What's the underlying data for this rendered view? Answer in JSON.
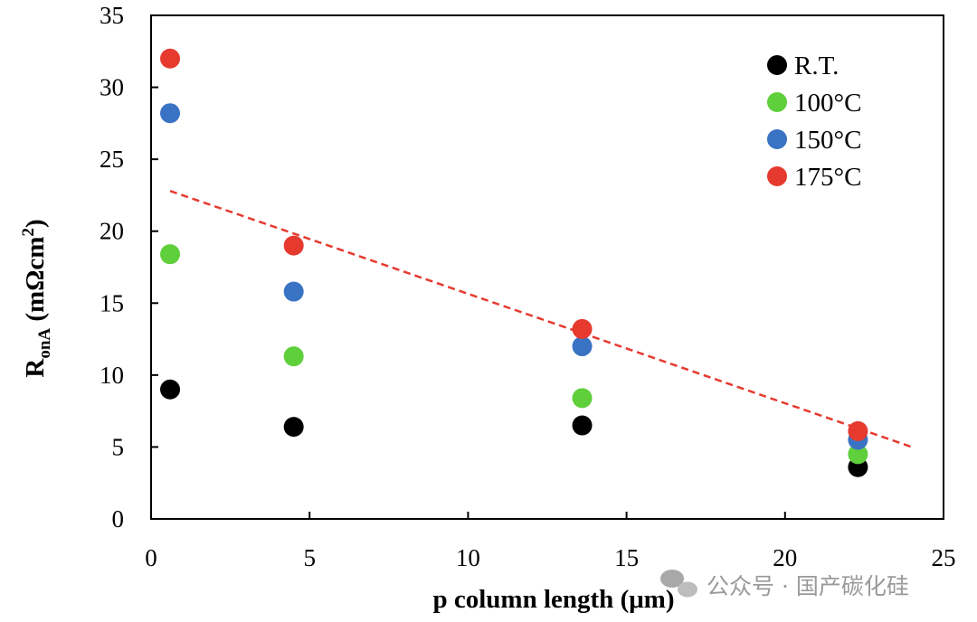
{
  "chart_data": {
    "type": "scatter",
    "title": "",
    "xlabel": "p column length (μm)",
    "ylabel_main": "R",
    "ylabel_sub": "onA",
    "ylabel_unit": " (mΩcm",
    "ylabel_sup": "2",
    "ylabel_close": ")",
    "xlim": [
      0,
      25
    ],
    "ylim": [
      0,
      35
    ],
    "x_ticks": [
      "0",
      "5",
      "10",
      "15",
      "20",
      "25"
    ],
    "y_ticks": [
      "0",
      "5",
      "10",
      "15",
      "20",
      "25",
      "30",
      "35"
    ],
    "grid": false,
    "legend_position": "top-right",
    "x": [
      0.6,
      4.5,
      13.6,
      22.3
    ],
    "series": [
      {
        "name": "R.T.",
        "color": "#000000",
        "values": [
          9.0,
          6.4,
          6.5,
          3.6
        ]
      },
      {
        "name": "100°C",
        "color": "#5fcf3b",
        "values": [
          18.4,
          11.3,
          8.4,
          4.5
        ]
      },
      {
        "name": "150°C",
        "color": "#3a73c4",
        "values": [
          28.2,
          15.8,
          12.0,
          5.5
        ]
      },
      {
        "name": "175°C",
        "color": "#e63a2f",
        "values": [
          32.0,
          19.0,
          13.2,
          6.1
        ]
      }
    ],
    "trendline": {
      "series": "175°C",
      "style": "dashed",
      "color": "#e63a2f",
      "x": [
        0.6,
        24.0
      ],
      "y": [
        22.8,
        5.0
      ]
    }
  },
  "watermark": {
    "text": "公众号 · 国产碳化硅"
  }
}
